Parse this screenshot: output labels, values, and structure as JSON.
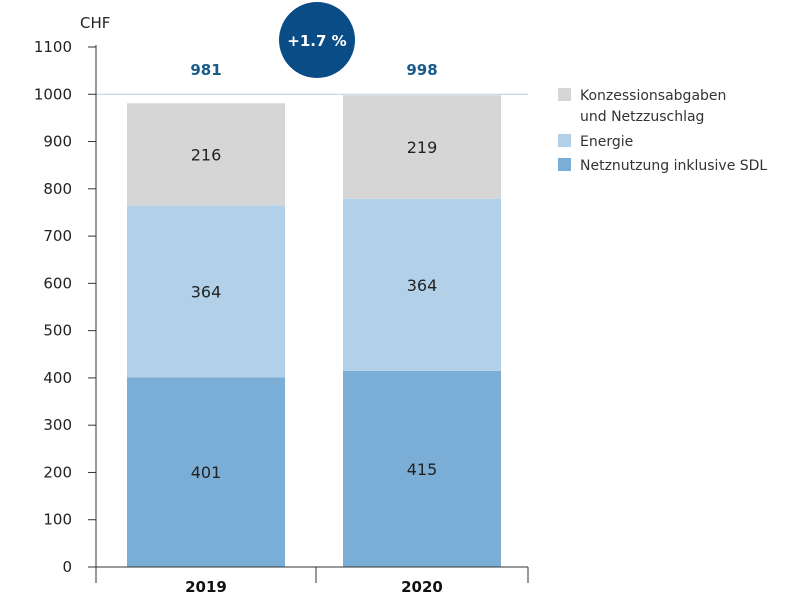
{
  "chart_data": {
    "type": "bar",
    "stacked": true,
    "unit_label": "CHF",
    "categories": [
      "2019",
      "2020"
    ],
    "series": [
      {
        "name": "Netznutzung inklusive SDL",
        "values": [
          401,
          415
        ],
        "color": "#7aaed6"
      },
      {
        "name": "Energie",
        "values": [
          364,
          364
        ],
        "color": "#b2d1e8"
      },
      {
        "name": "Konzessionsabgaben und Netzzuschlag",
        "name_lines": [
          "Konzessionsabgaben",
          "und Netzzuschlag"
        ],
        "values": [
          216,
          219
        ],
        "color": "#d6d6d6"
      }
    ],
    "totals": [
      "981",
      "998"
    ],
    "change_badge": {
      "text": "+1.7 %",
      "color": "#0a4d86"
    },
    "ylim": [
      0,
      1100
    ],
    "yticks": [
      0,
      100,
      200,
      300,
      400,
      500,
      600,
      700,
      800,
      900,
      1000,
      1100
    ],
    "grid_line_at": 1000,
    "legend_position": "right"
  }
}
